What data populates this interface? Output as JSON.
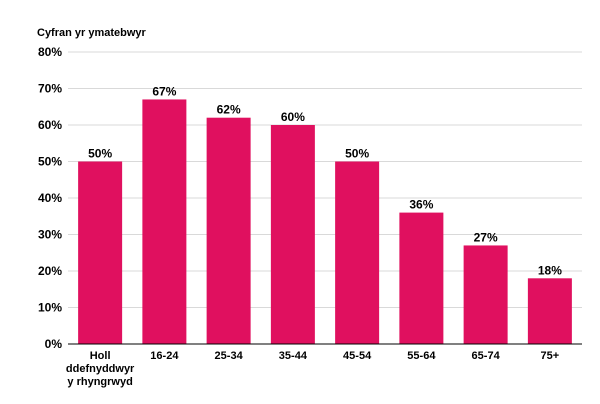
{
  "chart_data": {
    "type": "bar",
    "ylabel": "Cyfran yr ymatebwyr",
    "categories": [
      [
        "Holl",
        "ddefnyddwyr",
        "y rhyngrwyd"
      ],
      [
        "16-24"
      ],
      [
        "25-34"
      ],
      [
        "35-44"
      ],
      [
        "45-54"
      ],
      [
        "55-64"
      ],
      [
        "65-74"
      ],
      [
        "75+"
      ]
    ],
    "values": [
      50,
      67,
      62,
      60,
      50,
      36,
      27,
      18
    ],
    "data_labels": [
      "50%",
      "67%",
      "62%",
      "60%",
      "50%",
      "36%",
      "27%",
      "18%"
    ],
    "yticks": [
      0,
      10,
      20,
      30,
      40,
      50,
      60,
      70,
      80
    ],
    "ytick_labels": [
      "0%",
      "10%",
      "20%",
      "30%",
      "40%",
      "50%",
      "60%",
      "70%",
      "80%"
    ],
    "ylim": [
      0,
      80
    ],
    "grid": true,
    "bar_color": "#e0105f"
  }
}
